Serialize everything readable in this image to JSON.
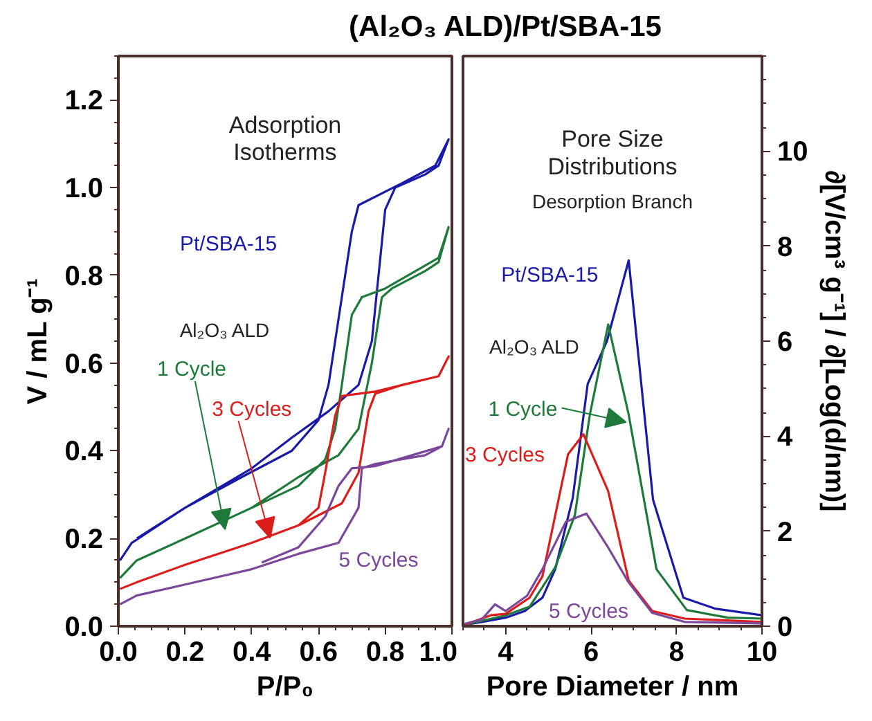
{
  "chart_data": [
    {
      "type": "line",
      "title": "(Al₂O₃ ALD)/Pt/SBA-15",
      "xlabel": "P/P₀",
      "ylabel": "V / mL g⁻¹",
      "xlim": [
        0,
        1
      ],
      "xticks": [
        {
          "value": 0,
          "label": "0.0"
        },
        {
          "value": 0.2,
          "label": "0.2"
        },
        {
          "value": 0.4,
          "label": "0.4"
        },
        {
          "value": 0.6,
          "label": "0.6"
        },
        {
          "value": 0.8,
          "label": "0.8"
        },
        {
          "value": 1,
          "label": "1.0"
        }
      ],
      "ylim": [
        0,
        1.3
      ],
      "yticks": [
        {
          "value": 0,
          "label": "0.0"
        },
        {
          "value": 0.2,
          "label": "0.2"
        },
        {
          "value": 0.4,
          "label": "0.4"
        },
        {
          "value": 0.6,
          "label": "0.6"
        },
        {
          "value": 0.8,
          "label": "0.8"
        },
        {
          "value": 1.0,
          "label": "1.0"
        },
        {
          "value": 1.2,
          "label": "1.2"
        }
      ],
      "grid": false,
      "marker": "none",
      "line_style": "solid",
      "annotations": [
        "Adsorption Isotherms",
        "Al₂O₃ ALD"
      ],
      "series": [
        {
          "name": "Pt/SBA-15",
          "color": "#1a1aa8",
          "x": [
            0.005,
            0.04,
            0.2,
            0.4,
            0.52,
            0.63,
            0.72,
            0.76,
            0.78,
            0.8,
            0.83,
            0.92,
            0.96,
            0.99,
            0.95,
            0.85,
            0.72,
            0.7,
            0.67,
            0.63,
            0.6,
            0.52,
            0.37,
            0.2,
            0.055
          ],
          "values": [
            0.15,
            0.19,
            0.27,
            0.36,
            0.43,
            0.49,
            0.55,
            0.65,
            0.8,
            0.95,
            1.0,
            1.03,
            1.05,
            1.11,
            1.05,
            1.01,
            0.96,
            0.9,
            0.75,
            0.55,
            0.47,
            0.4,
            0.34,
            0.27,
            0.2
          ]
        },
        {
          "name": "1 Cycle",
          "color": "#1e7a3a",
          "x": [
            0.005,
            0.055,
            0.2,
            0.4,
            0.54,
            0.66,
            0.72,
            0.76,
            0.79,
            0.82,
            0.92,
            0.96,
            0.99,
            0.96,
            0.8,
            0.73,
            0.7,
            0.67,
            0.65,
            0.62,
            0.54,
            0.4
          ],
          "values": [
            0.11,
            0.15,
            0.2,
            0.27,
            0.34,
            0.39,
            0.45,
            0.6,
            0.75,
            0.77,
            0.81,
            0.83,
            0.91,
            0.84,
            0.77,
            0.75,
            0.71,
            0.55,
            0.45,
            0.38,
            0.32,
            0.27
          ]
        },
        {
          "name": "3 Cycles",
          "color": "#dd1c1c",
          "x": [
            0.005,
            0.055,
            0.2,
            0.4,
            0.54,
            0.67,
            0.72,
            0.75,
            0.77,
            0.85,
            0.96,
            0.99,
            0.96,
            0.77,
            0.67,
            0.65,
            0.62,
            0.6,
            0.54
          ],
          "values": [
            0.085,
            0.1,
            0.14,
            0.19,
            0.23,
            0.28,
            0.35,
            0.49,
            0.53,
            0.55,
            0.57,
            0.615,
            0.57,
            0.535,
            0.525,
            0.48,
            0.35,
            0.27,
            0.23
          ]
        },
        {
          "name": "5 Cycles",
          "color": "#7a479a",
          "x": [
            0.005,
            0.055,
            0.2,
            0.4,
            0.54,
            0.66,
            0.72,
            0.73,
            0.77,
            0.92,
            0.97,
            0.99,
            0.97,
            0.77,
            0.7,
            0.66,
            0.62,
            0.54,
            0.43
          ],
          "values": [
            0.05,
            0.07,
            0.095,
            0.13,
            0.165,
            0.19,
            0.27,
            0.36,
            0.37,
            0.39,
            0.41,
            0.45,
            0.41,
            0.365,
            0.36,
            0.32,
            0.25,
            0.18,
            0.145
          ]
        }
      ]
    },
    {
      "type": "line",
      "xlabel": "Pore Diameter / nm",
      "ylabel": "∂[V/cm³ g⁻¹] / ∂[Log(d/nm)]",
      "xlim": [
        3,
        10
      ],
      "xticks": [
        4,
        6,
        8,
        10
      ],
      "ylim": [
        0,
        12
      ],
      "yticks": [
        0,
        2,
        4,
        6,
        8,
        10
      ],
      "grid": false,
      "marker": "none",
      "line_style": "solid",
      "annotations": [
        "Pore Size Distributions",
        "Desorption Branch",
        "Al₂O₃ ALD"
      ],
      "series": [
        {
          "name": "Pt/SBA-15",
          "color": "#1a1aa8",
          "x": [
            3.04,
            3.44,
            4.0,
            4.45,
            4.86,
            5.16,
            5.57,
            5.92,
            6.37,
            6.88,
            7.45,
            8.16,
            8.9,
            10
          ],
          "values": [
            0.03,
            0.09,
            0.18,
            0.32,
            0.6,
            1.2,
            2.7,
            5.1,
            6.0,
            7.7,
            2.66,
            0.6,
            0.37,
            0.23
          ]
        },
        {
          "name": "1 Cycle",
          "color": "#1e7a3a",
          "x": [
            3.04,
            4.0,
            4.56,
            5.16,
            5.62,
            5.97,
            6.4,
            6.88,
            7.53,
            8.24,
            9.2,
            10
          ],
          "values": [
            0.03,
            0.23,
            0.41,
            1.24,
            2.34,
            4.45,
            6.35,
            4.45,
            1.2,
            0.34,
            0.18,
            0.16
          ]
        },
        {
          "name": "3 Cycles",
          "color": "#dd1c1c",
          "x": [
            3.04,
            3.65,
            4.0,
            4.56,
            4.86,
            5.46,
            5.82,
            6.4,
            6.88,
            7.43,
            8.19,
            10
          ],
          "values": [
            0.03,
            0.23,
            0.26,
            0.6,
            1.05,
            3.62,
            4.04,
            2.84,
            0.96,
            0.32,
            0.16,
            0.09
          ]
        },
        {
          "name": "5 Cycles",
          "color": "#7a479a",
          "x": [
            3.04,
            3.44,
            3.75,
            4.0,
            4.5,
            4.86,
            5.41,
            5.89,
            6.37,
            6.88,
            7.43,
            8.19,
            10
          ],
          "values": [
            0.05,
            0.14,
            0.46,
            0.32,
            0.64,
            1.2,
            2.2,
            2.37,
            1.7,
            0.92,
            0.28,
            0.09,
            0.06
          ]
        }
      ]
    }
  ]
}
